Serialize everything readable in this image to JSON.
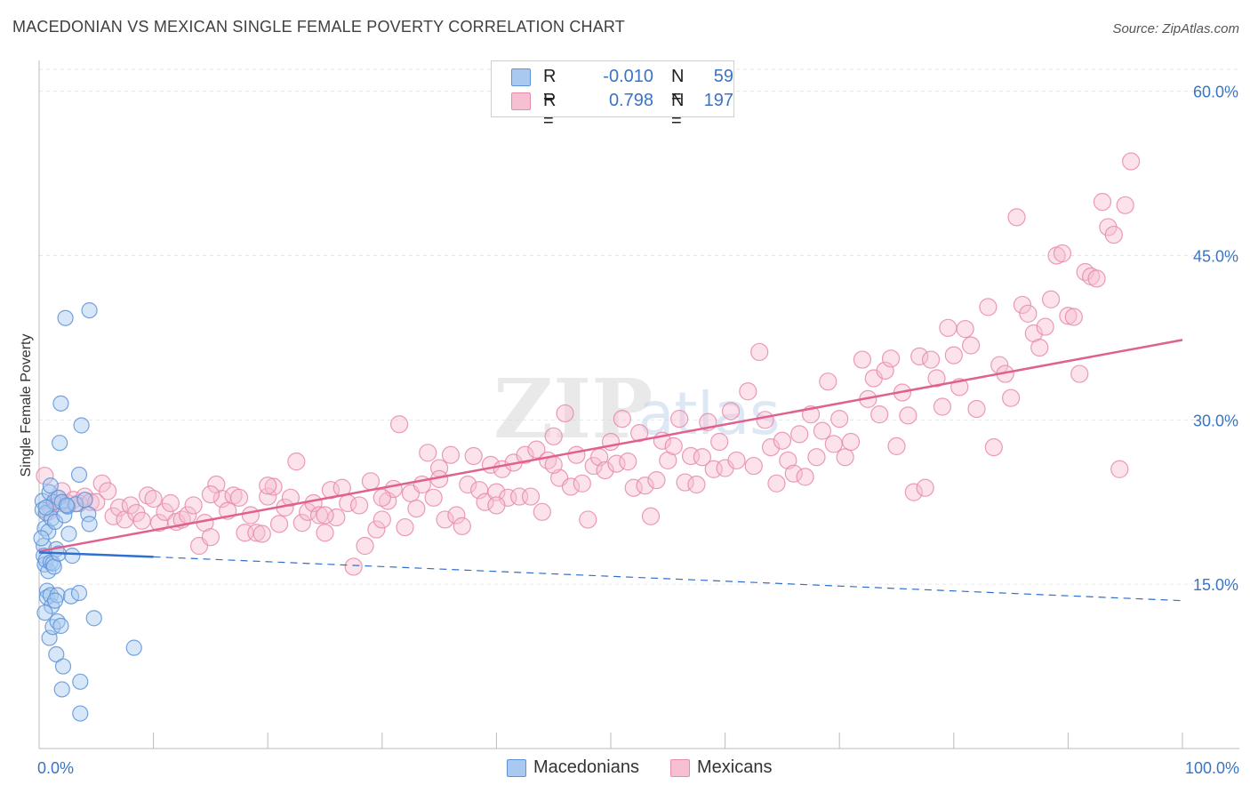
{
  "title": "MACEDONIAN VS MEXICAN SINGLE FEMALE POVERTY CORRELATION CHART",
  "source": "Source: ZipAtlas.com",
  "legend": {
    "rows": [
      {
        "r_label": "R =",
        "r_value": "-0.010",
        "n_label": "N =",
        "n_value": "59"
      },
      {
        "r_label": "R =",
        "r_value": "0.798",
        "n_label": "N =",
        "n_value": "197"
      }
    ]
  },
  "bottom_legend": [
    "Macedonians",
    "Mexicans"
  ],
  "colors": {
    "macedonian_fill": "#a9c9f0",
    "macedonian_stroke": "#5d93d8",
    "macedonian_line": "#2f6fce",
    "mexican_fill": "#f7bfd2",
    "mexican_stroke": "#e88aaa",
    "mexican_line": "#e0608e",
    "tick_text": "#3a74c4",
    "grid": "#e6e6e6"
  },
  "chart_data": {
    "type": "scatter",
    "title": "MACEDONIAN VS MEXICAN SINGLE FEMALE POVERTY CORRELATION CHART",
    "xlabel": "",
    "ylabel": "Single Female Poverty",
    "xlim": [
      0,
      100
    ],
    "ylim": [
      0,
      62
    ],
    "x_tick_labels": [
      "0.0%",
      "100.0%"
    ],
    "y_ticks": [
      15,
      30,
      45,
      60
    ],
    "y_tick_labels": [
      "15.0%",
      "30.0%",
      "45.0%",
      "60.0%"
    ],
    "grid": "horizontal dashed",
    "legend_position": "top-center",
    "series": [
      {
        "name": "Macedonians",
        "r": -0.01,
        "n": 59,
        "trend": {
          "x": [
            0,
            10
          ],
          "y": [
            17.9,
            17.5
          ],
          "extended_x": [
            10,
            100
          ],
          "extended_y": [
            17.5,
            13.5
          ]
        },
        "points": [
          [
            0.3,
            22.6
          ],
          [
            0.3,
            21.8
          ],
          [
            0.4,
            18.5
          ],
          [
            0.4,
            17.6
          ],
          [
            0.5,
            16.8
          ],
          [
            0.5,
            20.1
          ],
          [
            0.6,
            21.5
          ],
          [
            0.6,
            17.2
          ],
          [
            0.7,
            14.4
          ],
          [
            0.7,
            13.8
          ],
          [
            0.8,
            16.2
          ],
          [
            0.8,
            19.8
          ],
          [
            0.9,
            23.4
          ],
          [
            0.9,
            10.1
          ],
          [
            1.0,
            17.0
          ],
          [
            1.0,
            14.0
          ],
          [
            1.1,
            21.0
          ],
          [
            1.1,
            13.0
          ],
          [
            1.2,
            16.9
          ],
          [
            1.2,
            11.1
          ],
          [
            1.3,
            22.5
          ],
          [
            1.3,
            16.6
          ],
          [
            1.4,
            20.7
          ],
          [
            1.5,
            8.6
          ],
          [
            1.5,
            18.2
          ],
          [
            1.6,
            14.0
          ],
          [
            1.6,
            11.6
          ],
          [
            1.7,
            22.9
          ],
          [
            1.7,
            17.8
          ],
          [
            1.8,
            27.9
          ],
          [
            1.9,
            31.5
          ],
          [
            1.9,
            11.2
          ],
          [
            2.0,
            22.5
          ],
          [
            2.0,
            5.4
          ],
          [
            2.1,
            7.5
          ],
          [
            2.2,
            21.3
          ],
          [
            2.3,
            39.3
          ],
          [
            2.5,
            22.1
          ],
          [
            2.6,
            19.6
          ],
          [
            2.8,
            13.9
          ],
          [
            2.9,
            17.6
          ],
          [
            3.2,
            22.3
          ],
          [
            3.5,
            25.0
          ],
          [
            3.5,
            14.2
          ],
          [
            3.6,
            6.1
          ],
          [
            3.6,
            3.2
          ],
          [
            3.7,
            29.5
          ],
          [
            4.0,
            22.7
          ],
          [
            4.3,
            21.4
          ],
          [
            4.4,
            20.5
          ],
          [
            4.4,
            40.0
          ],
          [
            4.8,
            11.9
          ],
          [
            8.3,
            9.2
          ],
          [
            0.6,
            22.0
          ],
          [
            1.0,
            24.0
          ],
          [
            1.4,
            13.5
          ],
          [
            0.2,
            19.2
          ],
          [
            0.5,
            12.4
          ],
          [
            2.4,
            22.2
          ]
        ]
      },
      {
        "name": "Mexicans",
        "r": 0.798,
        "n": 197,
        "trend": {
          "x": [
            0,
            100
          ],
          "y": [
            18.0,
            37.3
          ]
        },
        "points": [
          [
            0.5,
            24.9
          ],
          [
            0.8,
            21.6
          ],
          [
            1.0,
            22.0
          ],
          [
            1.5,
            22.8
          ],
          [
            1.8,
            22.4
          ],
          [
            2.0,
            23.5
          ],
          [
            2.5,
            22.4
          ],
          [
            3.0,
            22.7
          ],
          [
            3.5,
            22.4
          ],
          [
            4.0,
            23.0
          ],
          [
            4.5,
            22.5
          ],
          [
            5.0,
            22.5
          ],
          [
            5.5,
            24.2
          ],
          [
            6.0,
            23.5
          ],
          [
            6.5,
            21.2
          ],
          [
            7.0,
            22.0
          ],
          [
            7.5,
            20.9
          ],
          [
            8.0,
            22.2
          ],
          [
            8.5,
            21.5
          ],
          [
            9.0,
            20.8
          ],
          [
            9.5,
            23.1
          ],
          [
            10.0,
            22.8
          ],
          [
            10.5,
            20.6
          ],
          [
            11.0,
            21.6
          ],
          [
            11.5,
            22.4
          ],
          [
            12.0,
            20.7
          ],
          [
            12.5,
            20.9
          ],
          [
            13.0,
            21.3
          ],
          [
            13.5,
            22.2
          ],
          [
            14.0,
            18.5
          ],
          [
            14.5,
            20.6
          ],
          [
            15.0,
            19.3
          ],
          [
            15.5,
            24.1
          ],
          [
            16.0,
            22.8
          ],
          [
            16.5,
            21.7
          ],
          [
            17.0,
            23.1
          ],
          [
            17.5,
            22.9
          ],
          [
            18.0,
            19.7
          ],
          [
            18.5,
            21.3
          ],
          [
            19.0,
            19.7
          ],
          [
            19.5,
            19.6
          ],
          [
            20.0,
            23.0
          ],
          [
            20.5,
            23.9
          ],
          [
            21.0,
            20.5
          ],
          [
            21.5,
            22.0
          ],
          [
            22.0,
            22.9
          ],
          [
            22.5,
            26.2
          ],
          [
            23.0,
            20.6
          ],
          [
            23.5,
            21.6
          ],
          [
            24.0,
            22.4
          ],
          [
            24.5,
            21.3
          ],
          [
            25.0,
            19.7
          ],
          [
            25.5,
            23.6
          ],
          [
            26.0,
            21.1
          ],
          [
            26.5,
            23.8
          ],
          [
            27.0,
            22.4
          ],
          [
            27.5,
            16.6
          ],
          [
            28.0,
            22.2
          ],
          [
            28.5,
            18.5
          ],
          [
            29.0,
            24.4
          ],
          [
            29.5,
            20.0
          ],
          [
            30.0,
            20.9
          ],
          [
            30.5,
            22.6
          ],
          [
            31.0,
            23.7
          ],
          [
            31.5,
            29.6
          ],
          [
            32.0,
            20.2
          ],
          [
            32.5,
            23.3
          ],
          [
            33.0,
            21.9
          ],
          [
            33.5,
            24.1
          ],
          [
            34.0,
            27.0
          ],
          [
            34.5,
            22.9
          ],
          [
            35.0,
            25.6
          ],
          [
            35.5,
            20.9
          ],
          [
            36.0,
            26.8
          ],
          [
            36.5,
            21.3
          ],
          [
            37.0,
            20.3
          ],
          [
            37.5,
            24.1
          ],
          [
            38.0,
            26.7
          ],
          [
            38.5,
            23.6
          ],
          [
            39.0,
            22.5
          ],
          [
            39.5,
            25.9
          ],
          [
            40.0,
            23.4
          ],
          [
            40.5,
            25.5
          ],
          [
            41.0,
            22.9
          ],
          [
            41.5,
            26.1
          ],
          [
            42.0,
            23.0
          ],
          [
            42.5,
            26.8
          ],
          [
            43.0,
            23.0
          ],
          [
            43.5,
            27.3
          ],
          [
            44.0,
            21.6
          ],
          [
            44.5,
            26.3
          ],
          [
            45.0,
            28.5
          ],
          [
            45.5,
            24.7
          ],
          [
            46.0,
            30.6
          ],
          [
            46.5,
            23.9
          ],
          [
            47.0,
            26.8
          ],
          [
            47.5,
            24.2
          ],
          [
            48.0,
            20.9
          ],
          [
            48.5,
            25.8
          ],
          [
            49.0,
            26.6
          ],
          [
            49.5,
            25.4
          ],
          [
            50.0,
            28.0
          ],
          [
            50.5,
            26.0
          ],
          [
            51.0,
            30.1
          ],
          [
            51.5,
            26.2
          ],
          [
            52.0,
            23.8
          ],
          [
            52.5,
            28.8
          ],
          [
            53.0,
            24.0
          ],
          [
            53.5,
            21.2
          ],
          [
            54.0,
            24.5
          ],
          [
            54.5,
            28.1
          ],
          [
            55.0,
            26.3
          ],
          [
            55.5,
            27.6
          ],
          [
            56.0,
            30.1
          ],
          [
            56.5,
            24.3
          ],
          [
            57.0,
            26.7
          ],
          [
            57.5,
            24.1
          ],
          [
            58.0,
            26.6
          ],
          [
            58.5,
            29.8
          ],
          [
            59.0,
            25.5
          ],
          [
            59.5,
            28.0
          ],
          [
            60.0,
            25.6
          ],
          [
            60.5,
            30.8
          ],
          [
            61.0,
            26.3
          ],
          [
            62.0,
            32.6
          ],
          [
            62.5,
            25.8
          ],
          [
            63.0,
            36.2
          ],
          [
            63.5,
            30.0
          ],
          [
            64.0,
            27.5
          ],
          [
            64.5,
            24.2
          ],
          [
            65.0,
            28.1
          ],
          [
            65.5,
            26.3
          ],
          [
            66.0,
            25.1
          ],
          [
            66.5,
            28.7
          ],
          [
            67.0,
            24.8
          ],
          [
            67.5,
            30.5
          ],
          [
            68.0,
            26.6
          ],
          [
            68.5,
            29.0
          ],
          [
            69.0,
            33.5
          ],
          [
            69.5,
            27.8
          ],
          [
            70.0,
            30.1
          ],
          [
            70.5,
            26.6
          ],
          [
            71.0,
            28.0
          ],
          [
            72.0,
            35.5
          ],
          [
            72.5,
            31.9
          ],
          [
            73.0,
            33.8
          ],
          [
            73.5,
            30.5
          ],
          [
            74.0,
            34.5
          ],
          [
            74.5,
            35.6
          ],
          [
            75.0,
            27.6
          ],
          [
            75.5,
            32.5
          ],
          [
            76.0,
            30.4
          ],
          [
            76.5,
            23.4
          ],
          [
            77.0,
            35.8
          ],
          [
            77.5,
            23.8
          ],
          [
            78.0,
            35.5
          ],
          [
            78.5,
            33.8
          ],
          [
            79.0,
            31.2
          ],
          [
            79.5,
            38.4
          ],
          [
            80.0,
            35.9
          ],
          [
            80.5,
            33.0
          ],
          [
            81.0,
            38.3
          ],
          [
            81.5,
            36.8
          ],
          [
            82.0,
            31.0
          ],
          [
            83.0,
            40.3
          ],
          [
            83.5,
            27.5
          ],
          [
            84.0,
            35.0
          ],
          [
            84.5,
            34.2
          ],
          [
            85.0,
            32.0
          ],
          [
            85.5,
            48.5
          ],
          [
            86.0,
            40.5
          ],
          [
            86.5,
            39.7
          ],
          [
            87.0,
            37.9
          ],
          [
            87.5,
            36.6
          ],
          [
            88.0,
            38.5
          ],
          [
            88.5,
            41.0
          ],
          [
            89.0,
            45.0
          ],
          [
            89.5,
            45.2
          ],
          [
            90.0,
            39.5
          ],
          [
            90.5,
            39.4
          ],
          [
            91.0,
            34.2
          ],
          [
            91.5,
            43.5
          ],
          [
            92.0,
            43.1
          ],
          [
            92.5,
            42.9
          ],
          [
            93.0,
            49.9
          ],
          [
            93.5,
            47.6
          ],
          [
            94.0,
            46.9
          ],
          [
            94.5,
            25.5
          ],
          [
            95.0,
            49.6
          ],
          [
            95.5,
            53.6
          ],
          [
            15.0,
            23.2
          ],
          [
            20.0,
            24.0
          ],
          [
            25.0,
            21.3
          ],
          [
            30.0,
            22.9
          ],
          [
            35.0,
            24.6
          ],
          [
            40.0,
            22.2
          ],
          [
            45.0,
            25.9
          ]
        ]
      }
    ]
  }
}
